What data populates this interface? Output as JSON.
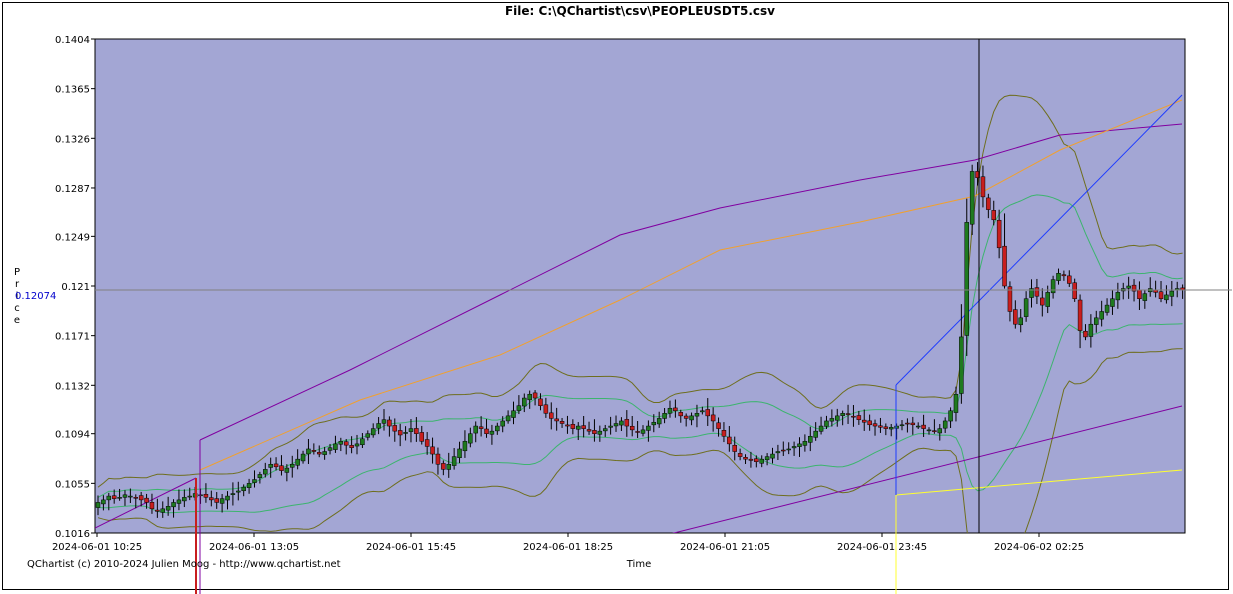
{
  "title": "File: C:\\QChartist\\csv\\PEOPLEUSDT5.csv",
  "footer": "QChartist (c) 2010-2024 Julien Moog - http://www.qchartist.net",
  "colors": {
    "plot_bg": "#a3a6d4",
    "bull": "#1f7a1f",
    "bear": "#c81e1e",
    "ma_orange": "#f0a030",
    "env_purple": "#8000a0",
    "bb_green": "#3cb46e",
    "bb_olive": "#6e6e1e",
    "trend_blue": "#1e3cff",
    "trend_yellow": "#ffff30",
    "cursor": "#000000",
    "crosshair": "#808080"
  },
  "chart_data": {
    "type": "candlestick",
    "title": "File: C:\\QChartist\\csv\\PEOPLEUSDT5.csv",
    "xlabel": "Time",
    "ylabel": "Price",
    "ylabel_letters": [
      "P",
      "r",
      "i",
      "c",
      "e"
    ],
    "ylim": [
      0.1016,
      0.1404
    ],
    "yticks": [
      "0.1404",
      "0.1365",
      "0.1326",
      "0.1287",
      "0.1249",
      "0.121",
      "0.1171",
      "0.1132",
      "0.1094",
      "0.1055",
      "0.1016"
    ],
    "xticks": [
      "2024-06-01 10:25",
      "2024-06-01 13:05",
      "2024-06-01 15:45",
      "2024-06-01 18:25",
      "2024-06-01 21:05",
      "2024-06-01 23:45",
      "2024-06-02 02:25"
    ],
    "cursor_price": "0.12074",
    "grid": false,
    "close": [
      0.104,
      0.1042,
      0.1045,
      0.1043,
      0.1044,
      0.1046,
      0.1045,
      0.1044,
      0.1042,
      0.104,
      0.1035,
      0.1033,
      0.1035,
      0.1037,
      0.104,
      0.1042,
      0.1044,
      0.1045,
      0.1047,
      0.1046,
      0.1044,
      0.1042,
      0.104,
      0.1043,
      0.1045,
      0.1047,
      0.1049,
      0.1052,
      0.1055,
      0.1058,
      0.1062,
      0.1066,
      0.107,
      0.1068,
      0.1065,
      0.1067,
      0.107,
      0.1074,
      0.1078,
      0.1082,
      0.108,
      0.1078,
      0.108,
      0.1083,
      0.1086,
      0.1088,
      0.1085,
      0.1083,
      0.1086,
      0.109,
      0.1094,
      0.1098,
      0.1102,
      0.1105,
      0.11,
      0.1096,
      0.1093,
      0.1095,
      0.1098,
      0.1094,
      0.1088,
      0.1084,
      0.1078,
      0.107,
      0.1066,
      0.107,
      0.1076,
      0.1082,
      0.1088,
      0.1094,
      0.11,
      0.1098,
      0.1094,
      0.1096,
      0.11,
      0.1104,
      0.1108,
      0.1112,
      0.1116,
      0.1122,
      0.1125,
      0.1122,
      0.1116,
      0.111,
      0.1106,
      0.1104,
      0.1102,
      0.11,
      0.1098,
      0.11,
      0.1098,
      0.1096,
      0.1094,
      0.1096,
      0.1098,
      0.11,
      0.1102,
      0.1104,
      0.11,
      0.1097,
      0.1095,
      0.1097,
      0.11,
      0.1103,
      0.1106,
      0.111,
      0.1114,
      0.1112,
      0.1108,
      0.1106,
      0.1108,
      0.111,
      0.1112,
      0.1108,
      0.1104,
      0.1098,
      0.1092,
      0.1086,
      0.108,
      0.1076,
      0.1074,
      0.1073,
      0.1072,
      0.1074,
      0.1076,
      0.1078,
      0.108,
      0.1081,
      0.1082,
      0.1084,
      0.1086,
      0.1088,
      0.1092,
      0.1096,
      0.11,
      0.1104,
      0.1106,
      0.1108,
      0.111,
      0.1109,
      0.1107,
      0.1105,
      0.1103,
      0.1101,
      0.11,
      0.1099,
      0.1098,
      0.1099,
      0.11,
      0.1101,
      0.1102,
      0.1101,
      0.11,
      0.1098,
      0.1097,
      0.1096,
      0.1098,
      0.1104,
      0.1112,
      0.1125,
      0.117,
      0.126,
      0.13,
      0.1295,
      0.128,
      0.127,
      0.1262,
      0.124,
      0.121,
      0.119,
      0.118,
      0.1185,
      0.12,
      0.1208,
      0.1202,
      0.1195,
      0.1205,
      0.1215,
      0.122,
      0.1218,
      0.1212,
      0.12,
      0.1175,
      0.117,
      0.118,
      0.1185,
      0.119,
      0.1195,
      0.12,
      0.1205,
      0.1208,
      0.121,
      0.1206,
      0.12,
      0.1204,
      0.1208,
      0.1205,
      0.12,
      0.1203,
      0.1206,
      0.1208,
      0.1207
    ]
  }
}
